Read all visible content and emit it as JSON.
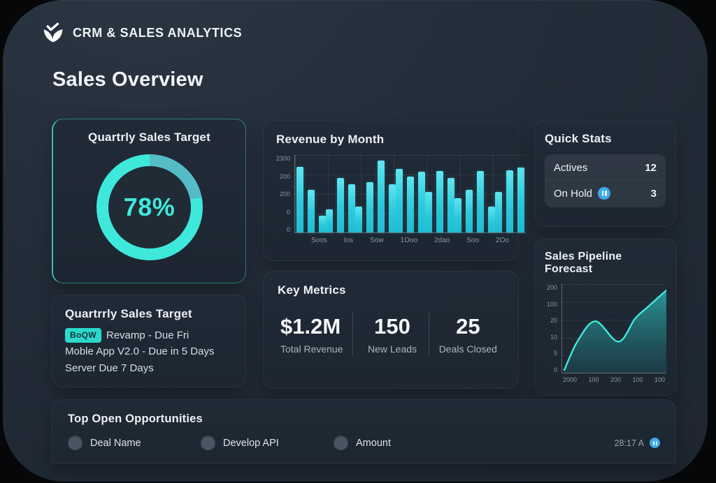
{
  "header": {
    "app_title": "CRM & SALES ANALYTICS",
    "logo": "leaf-logo"
  },
  "page_title": "Sales Overview",
  "colors": {
    "accent": "#3ee9dc",
    "donut_rest": "#55bcc6",
    "bar": "#2ccadc",
    "blue": "#3fa9e8",
    "badge_bg": "#2bd9cc",
    "card_bg": "#212b36"
  },
  "target_card": {
    "title": "Quartrly Sales Target",
    "percent_label": "78%",
    "percent": 78
  },
  "revenue_card": {
    "title": "Revenue by Month"
  },
  "quick_stats": {
    "title": "Quick Stats",
    "rows": [
      {
        "label": "Actives",
        "value": "12",
        "icon": ""
      },
      {
        "label": "On Hold",
        "value": "3",
        "icon": "pause-circle"
      }
    ]
  },
  "pipeline_card": {
    "title": "Sales Pipeline Forecast"
  },
  "tasks_card": {
    "title": "Quartrrly Sales Target",
    "items": [
      {
        "badge": "BoQW",
        "text": "Revamp - Due Fri"
      },
      {
        "badge": "",
        "text": "Moble App V2.0 - Due in 5 Days"
      },
      {
        "badge": "",
        "text": "Server Due 7 Days"
      }
    ]
  },
  "metrics_card": {
    "title": "Key Metrics",
    "metrics": [
      {
        "value": "$1.2M",
        "label": "Total Revenue"
      },
      {
        "value": "150",
        "label": "New Leads"
      },
      {
        "value": "25",
        "label": "Deals Closed"
      }
    ]
  },
  "opportunities": {
    "title": "Top Open Opportunities",
    "columns": [
      "Deal Name",
      "Develop API",
      "Amount"
    ],
    "meta": "28:17 A"
  },
  "chart_data": [
    {
      "id": "donut",
      "type": "pie",
      "title": "Quartrly Sales Target",
      "labels": [
        "progress",
        "remaining"
      ],
      "values": [
        78,
        22
      ],
      "center_label": "78%"
    },
    {
      "id": "revenue",
      "type": "bar",
      "title": "Revenue by Month",
      "categories": [
        "Soos",
        "Ios",
        "Sow",
        "1Ooo",
        "2dao",
        "Soo",
        "2Oo"
      ],
      "y_ticks": [
        "2300",
        "200",
        "200",
        "0",
        "0"
      ],
      "unit": "percent-of-axis-max",
      "grid": true,
      "groups": [
        [
          85,
          55,
          22
        ],
        [
          30,
          70,
          62
        ],
        [
          33,
          65,
          93,
          62
        ],
        [
          82,
          72,
          78
        ],
        [
          52,
          79,
          70
        ],
        [
          44,
          55,
          79,
          33
        ],
        [
          52,
          80,
          84
        ]
      ]
    },
    {
      "id": "pipeline",
      "type": "area",
      "title": "Sales Pipeline Forecast",
      "y_ticks": [
        "200",
        "100",
        "20",
        "10",
        "5",
        "0"
      ],
      "x_ticks": [
        "2000",
        "100",
        "200",
        "100",
        "100"
      ],
      "grid": true,
      "points": [
        [
          2,
          97
        ],
        [
          15,
          64
        ],
        [
          32,
          42
        ],
        [
          54,
          65
        ],
        [
          70,
          39
        ],
        [
          82,
          26
        ],
        [
          100,
          7
        ]
      ]
    }
  ]
}
